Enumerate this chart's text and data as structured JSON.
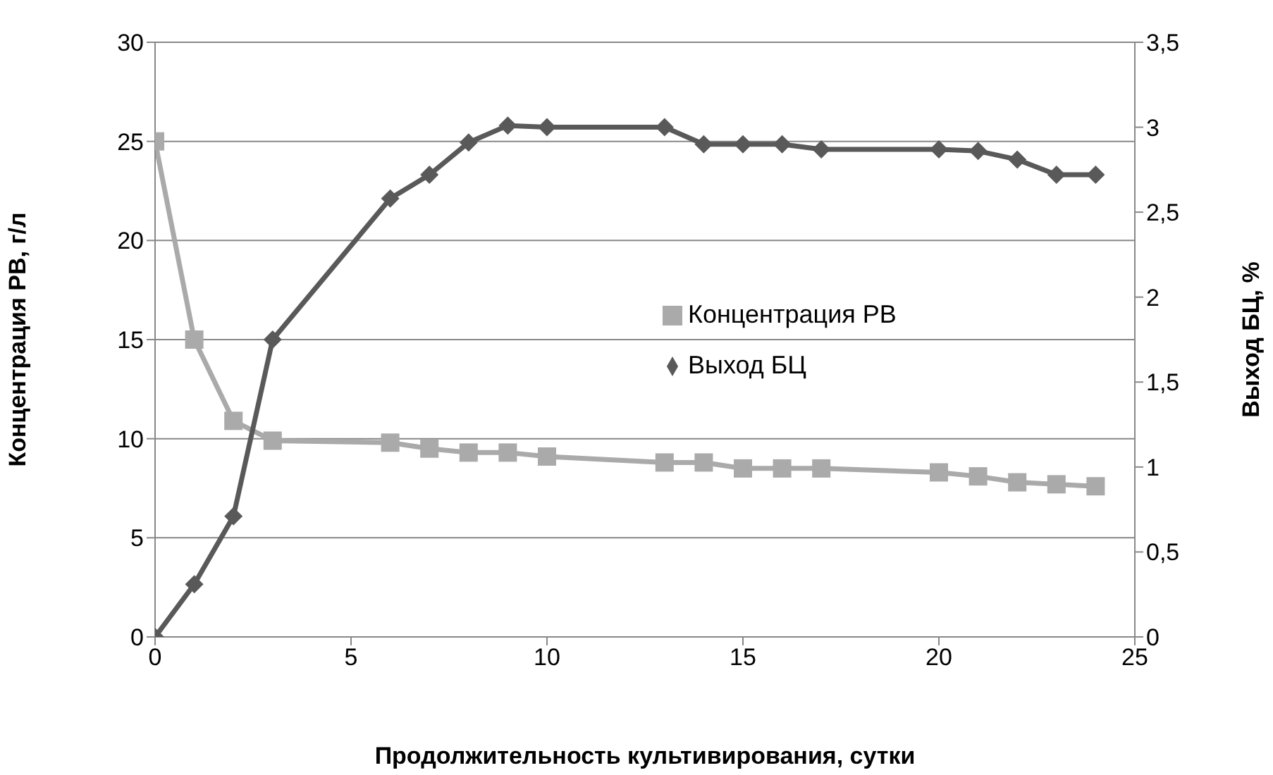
{
  "chart_data": {
    "type": "line",
    "xlabel": "Продолжительность культивирования, сутки",
    "ylabel": "Концентрация РВ, г/л",
    "y2label": "Выход БЦ, %",
    "x": [
      0,
      1,
      2,
      3,
      6,
      7,
      8,
      9,
      10,
      13,
      14,
      15,
      16,
      17,
      20,
      21,
      22,
      23,
      24
    ],
    "series": [
      {
        "name": "Концентрация РВ",
        "color": "#aaaaaa",
        "marker": "square",
        "values": [
          25,
          15,
          10.9,
          9.9,
          9.8,
          9.5,
          9.3,
          9.3,
          9.1,
          8.8,
          8.8,
          8.5,
          8.5,
          8.5,
          8.3,
          8.1,
          7.8,
          7.7,
          7.6
        ]
      },
      {
        "name": "Выход БЦ",
        "color": "#595959",
        "marker": "diamond",
        "axis": "y2",
        "values": [
          0,
          0.31,
          0.71,
          1.75,
          2.58,
          2.72,
          2.91,
          3.01,
          3.0,
          3.0,
          2.9,
          2.9,
          2.9,
          2.87,
          2.87,
          2.86,
          2.81,
          2.72,
          2.72
        ]
      }
    ],
    "xlim": [
      0,
      25
    ],
    "xticks": [
      0,
      5,
      10,
      15,
      20,
      25
    ],
    "ylim": [
      0,
      30
    ],
    "yticks": [
      0,
      5,
      10,
      15,
      20,
      25,
      30
    ],
    "y2lim": [
      0,
      3.5
    ],
    "y2ticks": [
      0,
      {
        "value": 0.5,
        "label": "0,5"
      },
      1,
      {
        "value": 1.5,
        "label": "1,5"
      },
      2,
      {
        "value": 2.5,
        "label": "2,5"
      },
      3,
      {
        "value": 3.5,
        "label": "3,5"
      }
    ],
    "grid": "y",
    "legend": "right",
    "line_style": "solid"
  }
}
